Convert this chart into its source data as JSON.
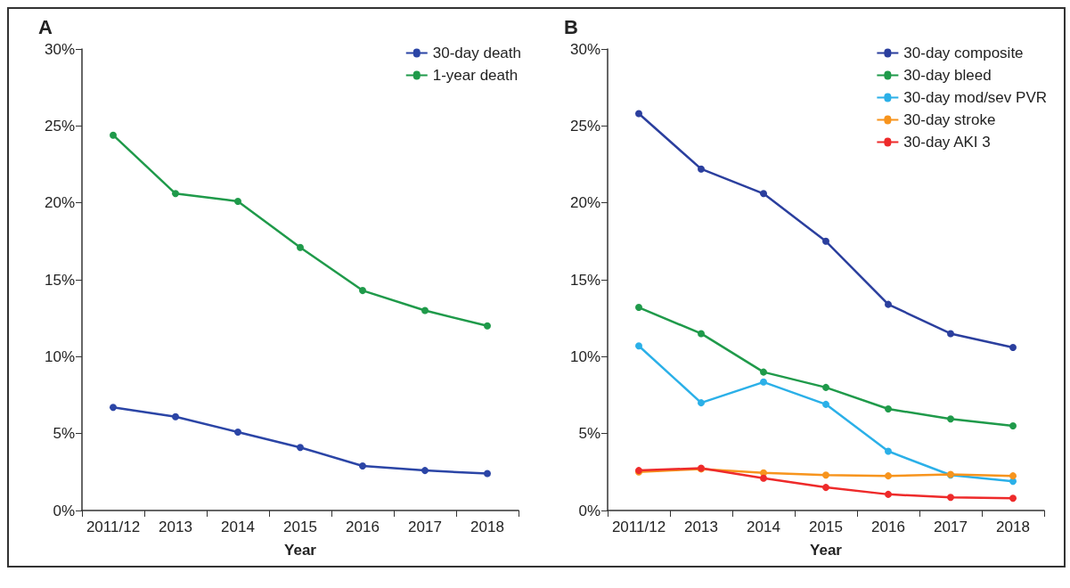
{
  "chart_data": [
    {
      "type": "line",
      "title": "A",
      "xlabel": "Year",
      "categories": [
        "2011/12",
        "2013",
        "2014",
        "2015",
        "2016",
        "2017",
        "2018"
      ],
      "series": [
        {
          "name": "30-day death",
          "color": "#2b45a6",
          "values": [
            6.7,
            6.1,
            5.1,
            4.1,
            2.9,
            2.6,
            2.4
          ]
        },
        {
          "name": "1-year death",
          "color": "#1f9a4a",
          "values": [
            24.4,
            20.6,
            20.1,
            17.1,
            14.3,
            13.0,
            12.0
          ]
        }
      ],
      "ylim": [
        0,
        30
      ],
      "yticks": [
        {
          "value": 0,
          "label": "0%"
        },
        {
          "value": 5,
          "label": "5%"
        },
        {
          "value": 10,
          "label": "10%"
        },
        {
          "value": 15,
          "label": "15%"
        },
        {
          "value": 20,
          "label": "20%"
        },
        {
          "value": 25,
          "label": "25%"
        },
        {
          "value": 30,
          "label": "30%"
        }
      ],
      "grid": false,
      "legend": "top right",
      "marker": "circle",
      "line_style": "solid"
    },
    {
      "type": "line",
      "title": "B",
      "xlabel": "Year",
      "categories": [
        "2011/12",
        "2013",
        "2014",
        "2015",
        "2016",
        "2017",
        "2018"
      ],
      "series": [
        {
          "name": "30-day composite",
          "color": "#2b3f9e",
          "values": [
            25.8,
            22.2,
            20.6,
            17.5,
            13.4,
            11.5,
            10.6
          ]
        },
        {
          "name": "30-day bleed",
          "color": "#1f9a4a",
          "values": [
            13.2,
            11.5,
            9.0,
            8.0,
            6.6,
            5.95,
            5.5
          ]
        },
        {
          "name": "30-day mod/sev PVR",
          "color": "#2bb0e8",
          "values": [
            10.7,
            7.0,
            8.35,
            6.9,
            3.85,
            2.3,
            1.9
          ]
        },
        {
          "name": "30-day stroke",
          "color": "#f7941d",
          "values": [
            2.5,
            2.7,
            2.45,
            2.3,
            2.25,
            2.35,
            2.25
          ]
        },
        {
          "name": "30-day AKI 3",
          "color": "#ee2a2a",
          "values": [
            2.6,
            2.75,
            2.1,
            1.5,
            1.05,
            0.85,
            0.8
          ]
        }
      ],
      "ylim": [
        0,
        30
      ],
      "yticks": [
        {
          "value": 0,
          "label": "0%"
        },
        {
          "value": 5,
          "label": "5%"
        },
        {
          "value": 10,
          "label": "10%"
        },
        {
          "value": 15,
          "label": "15%"
        },
        {
          "value": 20,
          "label": "20%"
        },
        {
          "value": 25,
          "label": "25%"
        },
        {
          "value": 30,
          "label": "30%"
        }
      ],
      "grid": false,
      "legend": "top right",
      "marker": "circle",
      "line_style": "solid"
    }
  ]
}
